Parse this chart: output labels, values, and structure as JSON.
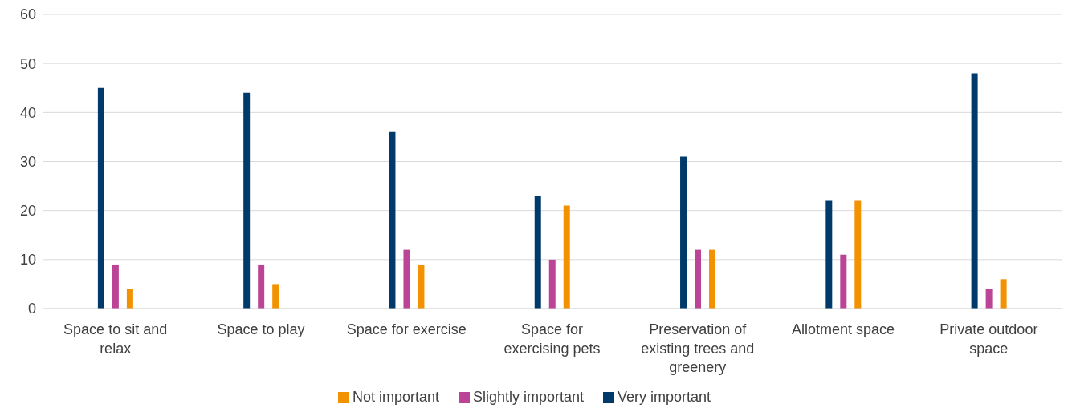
{
  "chart_data": {
    "type": "bar",
    "categories": [
      "Space to sit and relax",
      "Space to play",
      "Space for exercise",
      "Space for exercising pets",
      "Preservation of existing trees and greenery",
      "Allotment space",
      "Private outdoor space"
    ],
    "series": [
      {
        "name": "Very important",
        "color": "#003a6b",
        "values": [
          45,
          44,
          36,
          23,
          31,
          22,
          48
        ]
      },
      {
        "name": "Slightly important",
        "color": "#bb4496",
        "values": [
          9,
          9,
          12,
          10,
          12,
          11,
          4
        ]
      },
      {
        "name": "Not important",
        "color": "#f39200",
        "values": [
          4,
          5,
          9,
          21,
          12,
          22,
          6
        ]
      }
    ],
    "ylim": [
      0,
      60
    ],
    "yticks": [
      0,
      10,
      20,
      30,
      40,
      50,
      60
    ],
    "grid": "y",
    "legend": "bottom"
  }
}
